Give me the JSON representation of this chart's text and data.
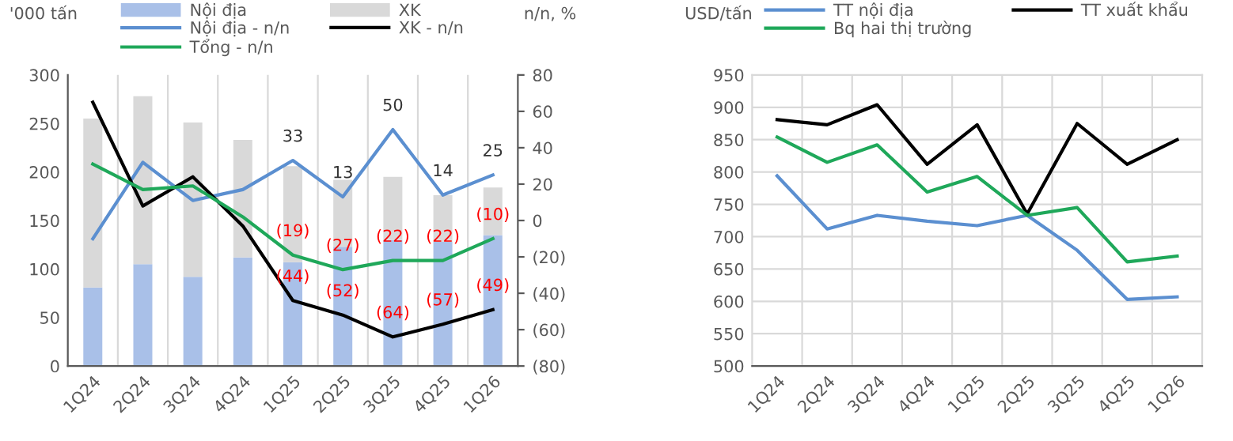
{
  "chart_data": [
    {
      "type": "bar",
      "stacked": true,
      "categories": [
        "1Q24",
        "2Q24",
        "3Q24",
        "4Q24",
        "1Q25",
        "2Q25",
        "3Q25",
        "4Q25",
        "1Q26"
      ],
      "ylabel": "'000 tấn",
      "y2label": "n/n, %",
      "ylim": [
        0,
        300
      ],
      "yticks": [
        0,
        50,
        100,
        150,
        200,
        250,
        300
      ],
      "y2lim": [
        -80,
        80
      ],
      "y2ticks": [
        {
          "value": -80,
          "label": "(80)"
        },
        {
          "value": -60,
          "label": "(60)"
        },
        {
          "value": -40,
          "label": "(40)"
        },
        {
          "value": -20,
          "label": "(20)"
        },
        0,
        20,
        40,
        60,
        80
      ],
      "grid": "x",
      "legend": "top",
      "series": [
        {
          "name": "Nội địa",
          "type": "bar",
          "color": "#a9c0e8",
          "values": [
            81,
            105,
            92,
            112,
            107,
            123,
            130,
            128,
            135
          ]
        },
        {
          "name": "XK",
          "type": "bar",
          "color": "#d9d9d9",
          "values": [
            174,
            173,
            159,
            121,
            99,
            69,
            65,
            48,
            49
          ]
        },
        {
          "name": "Nội địa - n/n",
          "type": "line",
          "axis": "y2",
          "color": "#5b8fd0",
          "values": [
            -10,
            32,
            11,
            17,
            33,
            13,
            50,
            14,
            25
          ],
          "value_labels": [
            null,
            null,
            null,
            null,
            "33",
            "13",
            "50",
            "14",
            "25"
          ]
        },
        {
          "name": "XK - n/n",
          "type": "line",
          "axis": "y2",
          "color": "#000000",
          "values": [
            65,
            8,
            24,
            -3,
            -44,
            -52,
            -64,
            -57,
            -49
          ],
          "value_labels": [
            null,
            null,
            null,
            null,
            "(44)",
            "(52)",
            "(64)",
            "(57)",
            "(49)"
          ]
        },
        {
          "name": "Tổng - n/n",
          "type": "line",
          "axis": "y2",
          "color": "#1fa85a",
          "values": [
            31,
            17,
            19,
            2,
            -19,
            -27,
            -22,
            -22,
            -10
          ],
          "value_labels": [
            null,
            null,
            null,
            null,
            "(19)",
            "(27)",
            "(22)",
            "(22)",
            "(10)"
          ]
        }
      ]
    },
    {
      "type": "line",
      "categories": [
        "1Q24",
        "2Q24",
        "3Q24",
        "4Q24",
        "1Q25",
        "2Q25",
        "3Q25",
        "4Q25",
        "1Q26"
      ],
      "ylabel": "USD/tấn",
      "ylim": [
        500,
        950
      ],
      "yticks": [
        500,
        550,
        600,
        650,
        700,
        750,
        800,
        850,
        900,
        950
      ],
      "grid": true,
      "legend": "top",
      "series": [
        {
          "name": "TT nội địa",
          "color": "#5b8fd0",
          "values": [
            794,
            712,
            733,
            724,
            717,
            733,
            679,
            603,
            607
          ]
        },
        {
          "name": "TT xuất khẩu",
          "color": "#000000",
          "values": [
            881,
            873,
            904,
            812,
            873,
            735,
            875,
            812,
            850
          ]
        },
        {
          "name": "Bq hai thị trường",
          "color": "#1fa85a",
          "values": [
            854,
            815,
            842,
            769,
            793,
            733,
            745,
            661,
            670
          ]
        }
      ]
    }
  ]
}
